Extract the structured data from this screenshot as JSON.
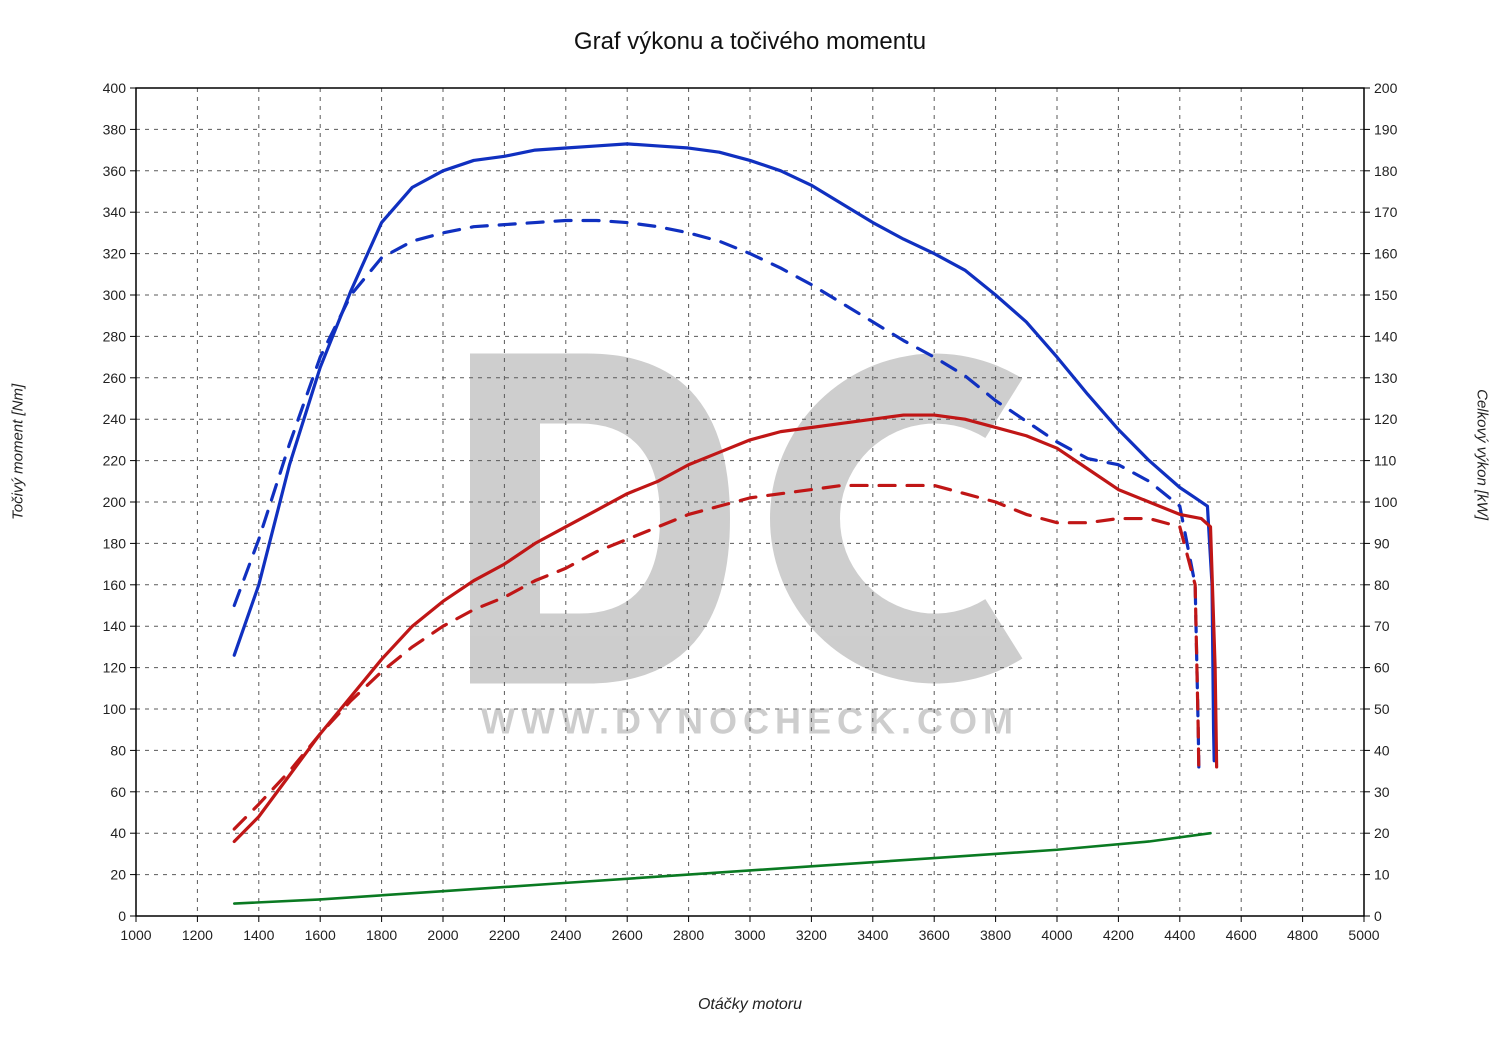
{
  "title": "Graf výkonu a točivého momentu",
  "x_label": "Otáčky motoru",
  "y_left_label": "Točivý moment [Nm]",
  "y_right_label": "Celkový výkon [kW]",
  "watermark_text": "WWW.DYNOCHECK.COM",
  "colors": {
    "background": "#ffffff",
    "grid": "#5a5a5a",
    "axis": "#000000",
    "torque": "#1030c0",
    "power": "#c01616",
    "loss": "#0a7a22",
    "tick_text": "#222222",
    "watermark": "#c7c7c7"
  },
  "styling": {
    "title_fontsize": 24,
    "axis_label_fontsize": 15,
    "tick_fontsize": 14,
    "line_width_solid": 3.2,
    "line_width_dashed": 3.2,
    "line_width_loss": 2.6,
    "dash_pattern": "16 12",
    "grid_dash": "4 5",
    "grid_width": 1,
    "axis_width": 1.5
  },
  "axes": {
    "x": {
      "min": 1000,
      "max": 5000,
      "tick_step": 200
    },
    "yL": {
      "min": 0,
      "max": 400,
      "tick_step": 20
    },
    "yR": {
      "min": 0,
      "max": 200,
      "tick_step": 10
    }
  },
  "x_ticks": [
    1000,
    1200,
    1400,
    1600,
    1800,
    2000,
    2200,
    2400,
    2600,
    2800,
    3000,
    3200,
    3400,
    3600,
    3800,
    4000,
    4200,
    4400,
    4600,
    4800,
    5000
  ],
  "yL_ticks": [
    0,
    20,
    40,
    60,
    80,
    100,
    120,
    140,
    160,
    180,
    200,
    220,
    240,
    260,
    280,
    300,
    320,
    340,
    360,
    380,
    400
  ],
  "yR_ticks": [
    0,
    10,
    20,
    30,
    40,
    50,
    60,
    70,
    80,
    90,
    100,
    110,
    120,
    130,
    140,
    150,
    160,
    170,
    180,
    190,
    200
  ],
  "series": {
    "torque_solid": {
      "axis": "yL",
      "color": "#1030c0",
      "dash": null,
      "data": [
        [
          1320,
          126
        ],
        [
          1400,
          160
        ],
        [
          1500,
          218
        ],
        [
          1600,
          265
        ],
        [
          1700,
          302
        ],
        [
          1800,
          335
        ],
        [
          1900,
          352
        ],
        [
          2000,
          360
        ],
        [
          2100,
          365
        ],
        [
          2200,
          367
        ],
        [
          2300,
          370
        ],
        [
          2400,
          371
        ],
        [
          2500,
          372
        ],
        [
          2600,
          373
        ],
        [
          2700,
          372
        ],
        [
          2800,
          371
        ],
        [
          2900,
          369
        ],
        [
          3000,
          365
        ],
        [
          3100,
          360
        ],
        [
          3200,
          353
        ],
        [
          3300,
          344
        ],
        [
          3400,
          335
        ],
        [
          3500,
          327
        ],
        [
          3600,
          320
        ],
        [
          3700,
          312
        ],
        [
          3800,
          300
        ],
        [
          3900,
          287
        ],
        [
          4000,
          270
        ],
        [
          4100,
          252
        ],
        [
          4200,
          235
        ],
        [
          4300,
          220
        ],
        [
          4400,
          207
        ],
        [
          4450,
          202
        ],
        [
          4490,
          198
        ],
        [
          4505,
          160
        ],
        [
          4510,
          90
        ],
        [
          4512,
          75
        ]
      ]
    },
    "torque_dashed": {
      "axis": "yL",
      "color": "#1030c0",
      "dash": "16 12",
      "data": [
        [
          1320,
          150
        ],
        [
          1400,
          182
        ],
        [
          1500,
          228
        ],
        [
          1600,
          270
        ],
        [
          1700,
          300
        ],
        [
          1800,
          318
        ],
        [
          1900,
          326
        ],
        [
          2000,
          330
        ],
        [
          2100,
          333
        ],
        [
          2200,
          334
        ],
        [
          2300,
          335
        ],
        [
          2400,
          336
        ],
        [
          2500,
          336
        ],
        [
          2600,
          335
        ],
        [
          2700,
          333
        ],
        [
          2800,
          330
        ],
        [
          2900,
          326
        ],
        [
          3000,
          320
        ],
        [
          3100,
          313
        ],
        [
          3200,
          305
        ],
        [
          3300,
          296
        ],
        [
          3400,
          287
        ],
        [
          3500,
          278
        ],
        [
          3600,
          270
        ],
        [
          3700,
          261
        ],
        [
          3800,
          249
        ],
        [
          3900,
          239
        ],
        [
          4000,
          229
        ],
        [
          4100,
          221
        ],
        [
          4200,
          218
        ],
        [
          4300,
          210
        ],
        [
          4400,
          198
        ],
        [
          4450,
          160
        ],
        [
          4460,
          90
        ],
        [
          4462,
          72
        ]
      ]
    },
    "power_solid": {
      "axis": "yR",
      "color": "#c01616",
      "dash": null,
      "data": [
        [
          1320,
          18
        ],
        [
          1400,
          24
        ],
        [
          1500,
          34
        ],
        [
          1600,
          44
        ],
        [
          1700,
          53
        ],
        [
          1800,
          62
        ],
        [
          1900,
          70
        ],
        [
          2000,
          76
        ],
        [
          2100,
          81
        ],
        [
          2200,
          85
        ],
        [
          2300,
          90
        ],
        [
          2400,
          94
        ],
        [
          2500,
          98
        ],
        [
          2600,
          102
        ],
        [
          2700,
          105
        ],
        [
          2800,
          109
        ],
        [
          2900,
          112
        ],
        [
          3000,
          115
        ],
        [
          3100,
          117
        ],
        [
          3200,
          118
        ],
        [
          3300,
          119
        ],
        [
          3400,
          120
        ],
        [
          3500,
          121
        ],
        [
          3600,
          121
        ],
        [
          3700,
          120
        ],
        [
          3800,
          118
        ],
        [
          3900,
          116
        ],
        [
          4000,
          113
        ],
        [
          4100,
          108
        ],
        [
          4200,
          103
        ],
        [
          4300,
          100
        ],
        [
          4400,
          97
        ],
        [
          4470,
          96
        ],
        [
          4500,
          94
        ],
        [
          4515,
          60
        ],
        [
          4520,
          36
        ]
      ]
    },
    "power_dashed": {
      "axis": "yR",
      "color": "#c01616",
      "dash": "16 12",
      "data": [
        [
          1320,
          21
        ],
        [
          1400,
          27
        ],
        [
          1500,
          35
        ],
        [
          1600,
          44
        ],
        [
          1700,
          52
        ],
        [
          1800,
          59
        ],
        [
          1900,
          65
        ],
        [
          2000,
          70
        ],
        [
          2100,
          74
        ],
        [
          2200,
          77
        ],
        [
          2300,
          81
        ],
        [
          2400,
          84
        ],
        [
          2500,
          88
        ],
        [
          2600,
          91
        ],
        [
          2700,
          94
        ],
        [
          2800,
          97
        ],
        [
          2900,
          99
        ],
        [
          3000,
          101
        ],
        [
          3100,
          102
        ],
        [
          3200,
          103
        ],
        [
          3300,
          104
        ],
        [
          3400,
          104
        ],
        [
          3500,
          104
        ],
        [
          3600,
          104
        ],
        [
          3700,
          102
        ],
        [
          3800,
          100
        ],
        [
          3900,
          97
        ],
        [
          4000,
          95
        ],
        [
          4100,
          95
        ],
        [
          4200,
          96
        ],
        [
          4300,
          96
        ],
        [
          4400,
          94
        ],
        [
          4450,
          80
        ],
        [
          4460,
          45
        ],
        [
          4462,
          35
        ]
      ]
    },
    "loss_solid": {
      "axis": "yR",
      "color": "#0a7a22",
      "dash": null,
      "data": [
        [
          1320,
          3
        ],
        [
          1600,
          4
        ],
        [
          2000,
          6
        ],
        [
          2400,
          8
        ],
        [
          2800,
          10
        ],
        [
          3200,
          12
        ],
        [
          3600,
          14
        ],
        [
          4000,
          16
        ],
        [
          4300,
          18
        ],
        [
          4500,
          20
        ]
      ]
    }
  }
}
